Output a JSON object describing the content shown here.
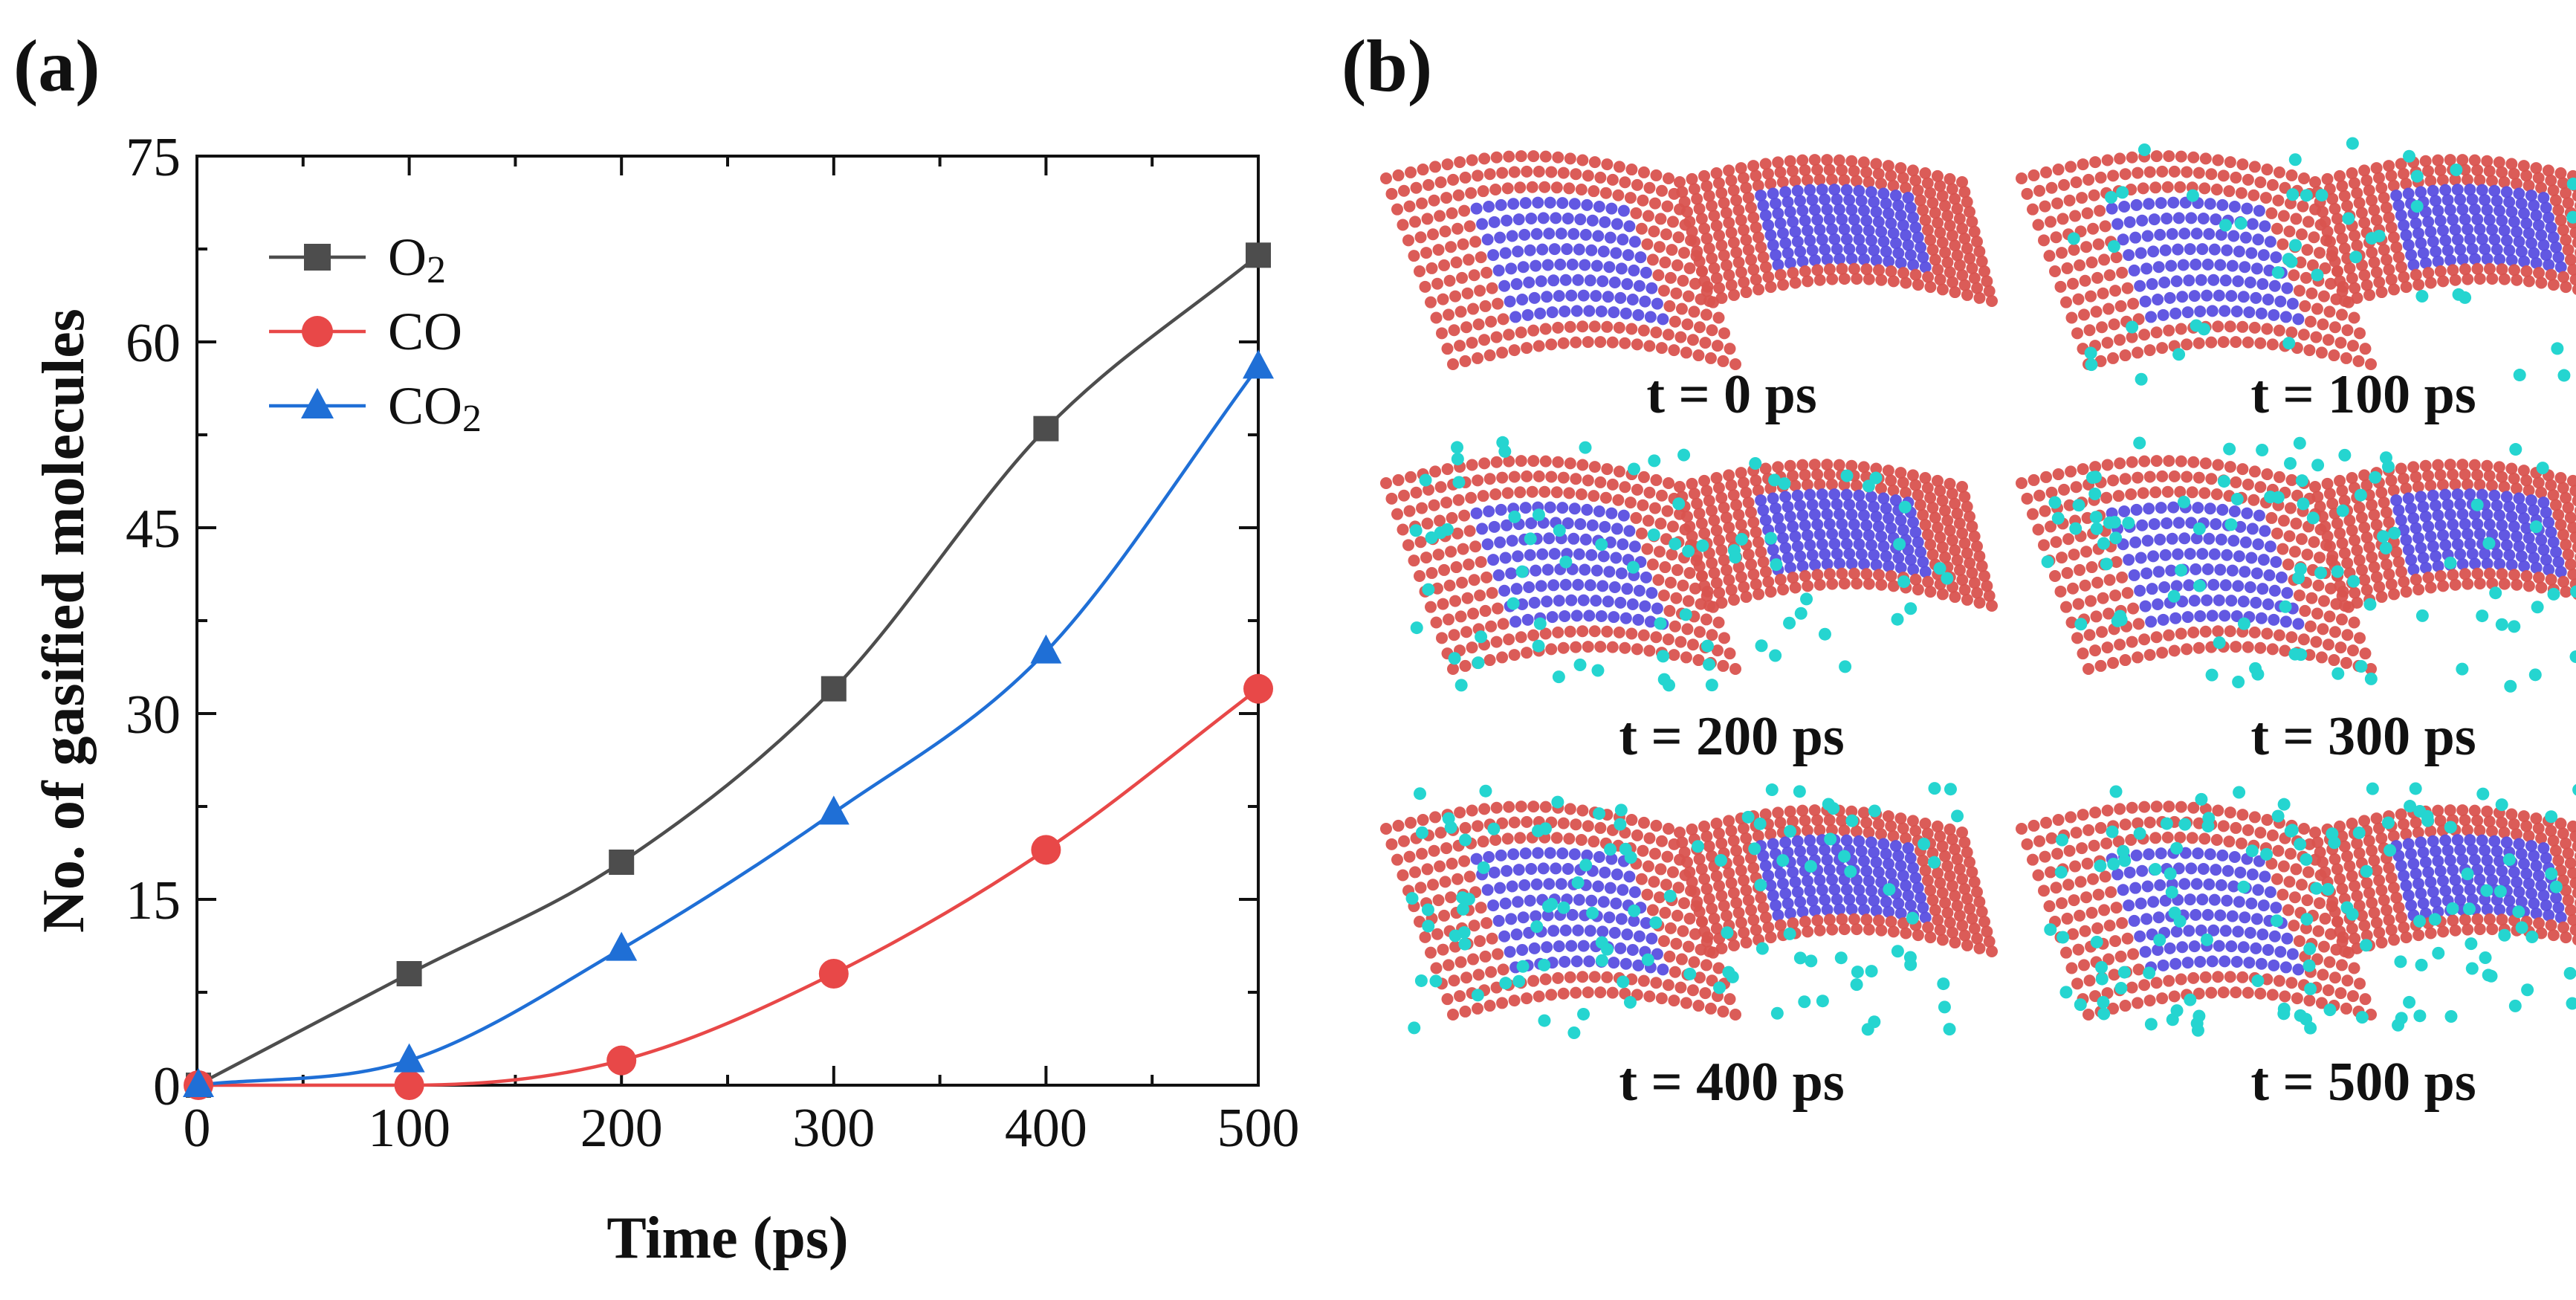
{
  "panels": {
    "a_label": "(a)",
    "b_label": "(b)"
  },
  "chart_data": {
    "type": "line",
    "title": "",
    "xlabel": "Time (ps)",
    "ylabel": "No. of gasified molecules",
    "xlim": [
      0,
      500
    ],
    "ylim": [
      0,
      75
    ],
    "x": [
      0,
      100,
      200,
      300,
      400,
      500
    ],
    "xticks": [
      0,
      100,
      200,
      300,
      400,
      500
    ],
    "yticks": [
      0,
      15,
      30,
      45,
      60,
      75
    ],
    "legend_position": "top-left",
    "series": [
      {
        "name": "O2",
        "label_main": "O",
        "label_sub": "2",
        "marker": "square",
        "color": "#4d4d4d",
        "values": [
          0,
          9,
          18,
          32,
          53,
          67
        ]
      },
      {
        "name": "CO",
        "label_main": "CO",
        "label_sub": "",
        "marker": "circle",
        "color": "#e84848",
        "values": [
          0,
          0,
          2,
          9,
          19,
          32
        ]
      },
      {
        "name": "CO2",
        "label_main": "CO",
        "label_sub": "2",
        "marker": "triangle",
        "color": "#1f6fd6",
        "values": [
          0,
          2,
          11,
          22,
          35,
          58
        ]
      }
    ]
  },
  "snapshots": {
    "colors": {
      "graphene_a": "#d9534f",
      "graphene_b": "#5a4fe0",
      "gas": "#25d5d0"
    },
    "items": [
      {
        "label": "t = 0 ps",
        "gas_level": 0.0
      },
      {
        "label": "t = 100 ps",
        "gas_level": 0.35
      },
      {
        "label": "t = 200 ps",
        "gas_level": 0.6
      },
      {
        "label": "t = 300 ps",
        "gas_level": 0.7
      },
      {
        "label": "t = 400 ps",
        "gas_level": 0.85
      },
      {
        "label": "t = 500 ps",
        "gas_level": 1.0
      }
    ]
  }
}
